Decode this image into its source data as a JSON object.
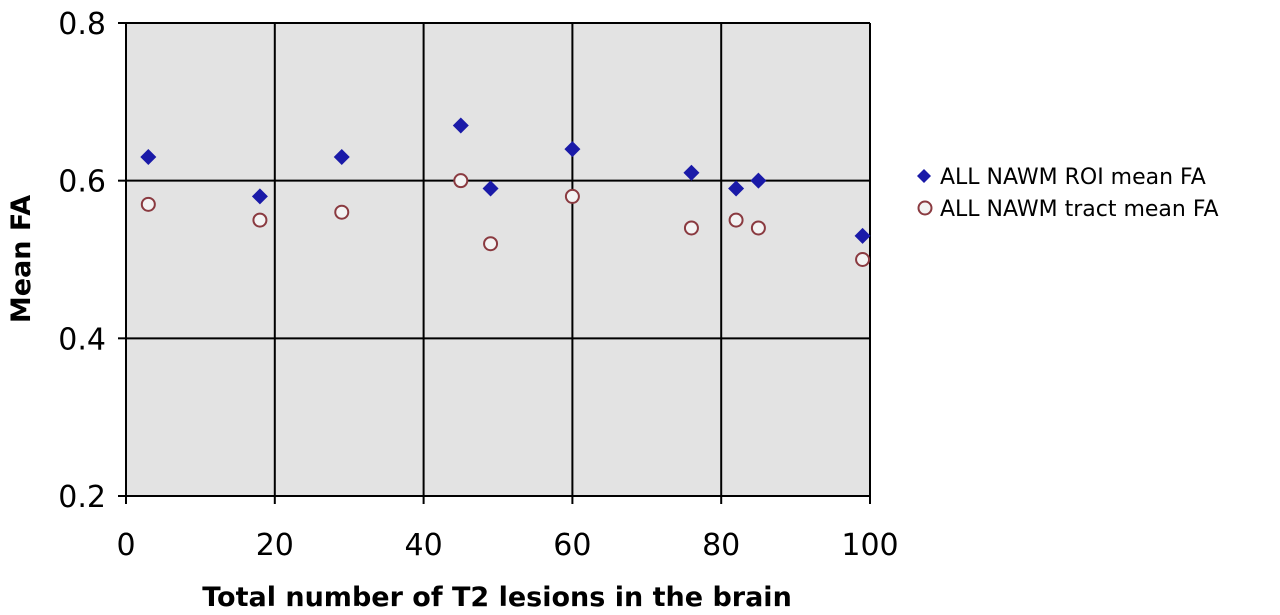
{
  "chart_data": {
    "type": "scatter",
    "title": "",
    "xlabel": "Total number of T2 lesions in the brain",
    "ylabel": "Mean FA",
    "xlim": [
      0,
      100
    ],
    "ylim": [
      0.2,
      0.8
    ],
    "x_ticks": [
      0,
      20,
      40,
      60,
      80,
      100
    ],
    "y_ticks": [
      0.2,
      0.4,
      0.6,
      0.8
    ],
    "x_tick_labels": [
      "0",
      "20",
      "40",
      "60",
      "80",
      "100"
    ],
    "y_tick_labels": [
      "0.2",
      "0.4",
      "0.6",
      "0.8"
    ],
    "grid": true,
    "legend_position": "right",
    "plot_background": "#e3e3e3",
    "series": [
      {
        "name": "ALL NAWM ROI mean FA",
        "marker": "diamond",
        "color": "#1a1aa8",
        "points": [
          [
            3,
            0.63
          ],
          [
            18,
            0.58
          ],
          [
            29,
            0.63
          ],
          [
            45,
            0.67
          ],
          [
            49,
            0.59
          ],
          [
            60,
            0.64
          ],
          [
            76,
            0.61
          ],
          [
            82,
            0.59
          ],
          [
            85,
            0.6
          ],
          [
            99,
            0.53
          ]
        ]
      },
      {
        "name": "ALL NAWM tract mean FA",
        "marker": "open-circle",
        "color": "#8a3a40",
        "points": [
          [
            3,
            0.57
          ],
          [
            18,
            0.55
          ],
          [
            29,
            0.56
          ],
          [
            45,
            0.6
          ],
          [
            49,
            0.52
          ],
          [
            60,
            0.58
          ],
          [
            76,
            0.54
          ],
          [
            82,
            0.55
          ],
          [
            85,
            0.54
          ],
          [
            99,
            0.5
          ]
        ]
      }
    ]
  }
}
